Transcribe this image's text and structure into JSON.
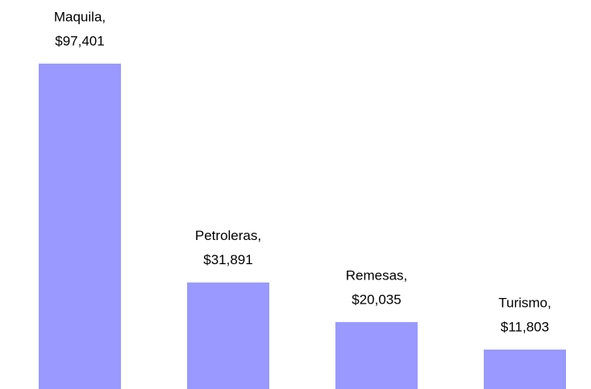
{
  "chart_data": {
    "type": "bar",
    "categories": [
      "Maquila,",
      "Petroleras,",
      "Remesas,",
      "Turismo,"
    ],
    "values": [
      97401,
      31891,
      20035,
      11803
    ],
    "value_labels": [
      "$97,401",
      "$31,891",
      "$20,035",
      "$11,803"
    ],
    "color": "#9999ff"
  }
}
